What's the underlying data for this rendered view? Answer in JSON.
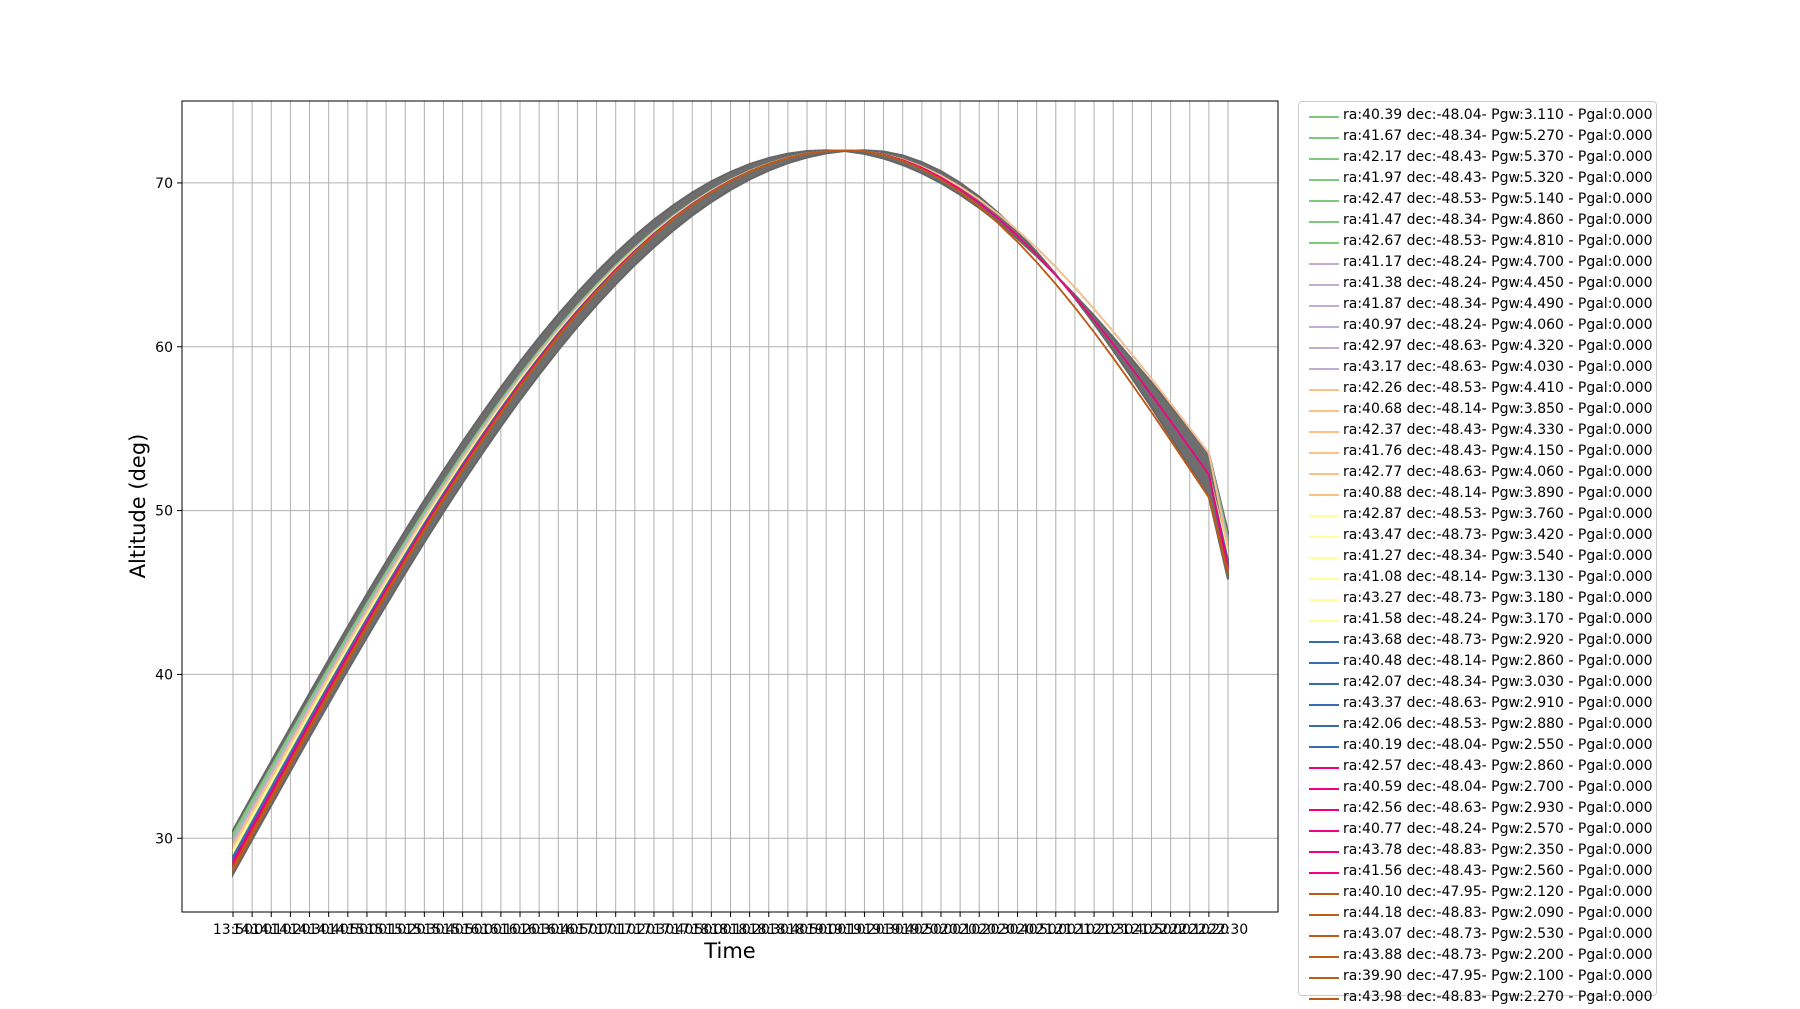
{
  "chart_data": {
    "type": "line",
    "xlabel": "Time",
    "ylabel": "Altitude (deg)",
    "ylim": [
      25.5,
      75
    ],
    "yticks": [
      30,
      40,
      50,
      60,
      70
    ],
    "grid": true,
    "legend_placement": "outside-right",
    "x": [
      "13:50",
      "14:00",
      "14:10",
      "14:20",
      "14:30",
      "14:40",
      "14:50",
      "15:00",
      "15:10",
      "15:20",
      "15:30",
      "15:40",
      "15:50",
      "16:00",
      "16:10",
      "16:20",
      "16:30",
      "16:40",
      "16:50",
      "17:00",
      "17:10",
      "17:20",
      "17:30",
      "17:40",
      "17:50",
      "18:00",
      "18:10",
      "18:20",
      "18:30",
      "18:40",
      "18:50",
      "19:00",
      "19:10",
      "19:20",
      "19:30",
      "19:40",
      "19:50",
      "20:00",
      "20:10",
      "20:20",
      "20:30",
      "20:40",
      "20:50",
      "21:00",
      "21:10",
      "21:20",
      "21:30",
      "21:40",
      "21:50",
      "22:00",
      "22:10",
      "22:20",
      "22:30"
    ],
    "altitude_profile": {
      "base_start": 29.0,
      "upper_start": 30.5,
      "lower_start": 27.8,
      "peak_time": "19:10",
      "peak_altitude": 72.0,
      "end_upper": 48.7,
      "end_lower": 45.8
    },
    "series": [
      {
        "name": "ra:40.39 dec:-48.04- Pgw:3.110 - Pgal:0.000",
        "color": "#7fc97f"
      },
      {
        "name": "ra:41.67 dec:-48.34- Pgw:5.270 - Pgal:0.000",
        "color": "#7fc97f"
      },
      {
        "name": "ra:42.17 dec:-48.43- Pgw:5.370 - Pgal:0.000",
        "color": "#7fc97f"
      },
      {
        "name": "ra:41.97 dec:-48.43- Pgw:5.320 - Pgal:0.000",
        "color": "#7fc97f"
      },
      {
        "name": "ra:42.47 dec:-48.53- Pgw:5.140 - Pgal:0.000",
        "color": "#7fc97f"
      },
      {
        "name": "ra:41.47 dec:-48.34- Pgw:4.860 - Pgal:0.000",
        "color": "#7fc97f"
      },
      {
        "name": "ra:42.67 dec:-48.53- Pgw:4.810 - Pgal:0.000",
        "color": "#7fc97f"
      },
      {
        "name": "ra:41.17 dec:-48.24- Pgw:4.700 - Pgal:0.000",
        "color": "#beaed4"
      },
      {
        "name": "ra:41.38 dec:-48.24- Pgw:4.450 - Pgal:0.000",
        "color": "#beaed4"
      },
      {
        "name": "ra:41.87 dec:-48.34- Pgw:4.490 - Pgal:0.000",
        "color": "#beaed4"
      },
      {
        "name": "ra:40.97 dec:-48.24- Pgw:4.060 - Pgal:0.000",
        "color": "#beaed4"
      },
      {
        "name": "ra:42.97 dec:-48.63- Pgw:4.320 - Pgal:0.000",
        "color": "#beaed4"
      },
      {
        "name": "ra:43.17 dec:-48.63- Pgw:4.030 - Pgal:0.000",
        "color": "#beaed4"
      },
      {
        "name": "ra:42.26 dec:-48.53- Pgw:4.410 - Pgal:0.000",
        "color": "#fdc086"
      },
      {
        "name": "ra:40.68 dec:-48.14- Pgw:3.850 - Pgal:0.000",
        "color": "#fdc086"
      },
      {
        "name": "ra:42.37 dec:-48.43- Pgw:4.330 - Pgal:0.000",
        "color": "#fdc086"
      },
      {
        "name": "ra:41.76 dec:-48.43- Pgw:4.150 - Pgal:0.000",
        "color": "#fdc086"
      },
      {
        "name": "ra:42.77 dec:-48.63- Pgw:4.060 - Pgal:0.000",
        "color": "#fdc086"
      },
      {
        "name": "ra:40.88 dec:-48.14- Pgw:3.890 - Pgal:0.000",
        "color": "#fdc086"
      },
      {
        "name": "ra:42.87 dec:-48.53- Pgw:3.760 - Pgal:0.000",
        "color": "#ffff99"
      },
      {
        "name": "ra:43.47 dec:-48.73- Pgw:3.420 - Pgal:0.000",
        "color": "#ffff99"
      },
      {
        "name": "ra:41.27 dec:-48.34- Pgw:3.540 - Pgal:0.000",
        "color": "#ffff99"
      },
      {
        "name": "ra:41.08 dec:-48.14- Pgw:3.130 - Pgal:0.000",
        "color": "#ffff99"
      },
      {
        "name": "ra:43.27 dec:-48.73- Pgw:3.180 - Pgal:0.000",
        "color": "#ffff99"
      },
      {
        "name": "ra:41.58 dec:-48.24- Pgw:3.170 - Pgal:0.000",
        "color": "#ffff99"
      },
      {
        "name": "ra:43.68 dec:-48.73- Pgw:2.920 - Pgal:0.000",
        "color": "#386cb0"
      },
      {
        "name": "ra:40.48 dec:-48.14- Pgw:2.860 - Pgal:0.000",
        "color": "#386cb0"
      },
      {
        "name": "ra:42.07 dec:-48.34- Pgw:3.030 - Pgal:0.000",
        "color": "#386cb0"
      },
      {
        "name": "ra:43.37 dec:-48.63- Pgw:2.910 - Pgal:0.000",
        "color": "#386cb0"
      },
      {
        "name": "ra:42.06 dec:-48.53- Pgw:2.880 - Pgal:0.000",
        "color": "#386cb0"
      },
      {
        "name": "ra:40.19 dec:-48.04- Pgw:2.550 - Pgal:0.000",
        "color": "#386cb0"
      },
      {
        "name": "ra:42.57 dec:-48.43- Pgw:2.860 - Pgal:0.000",
        "color": "#f0027f"
      },
      {
        "name": "ra:40.59 dec:-48.04- Pgw:2.700 - Pgal:0.000",
        "color": "#f0027f"
      },
      {
        "name": "ra:42.56 dec:-48.63- Pgw:2.930 - Pgal:0.000",
        "color": "#f0027f"
      },
      {
        "name": "ra:40.77 dec:-48.24- Pgw:2.570 - Pgal:0.000",
        "color": "#f0027f"
      },
      {
        "name": "ra:43.78 dec:-48.83- Pgw:2.350 - Pgal:0.000",
        "color": "#f0027f"
      },
      {
        "name": "ra:41.56 dec:-48.43- Pgw:2.560 - Pgal:0.000",
        "color": "#f0027f"
      },
      {
        "name": "ra:40.10 dec:-47.95- Pgw:2.120 - Pgal:0.000",
        "color": "#bf5b17"
      },
      {
        "name": "ra:44.18 dec:-48.83- Pgw:2.090 - Pgal:0.000",
        "color": "#bf5b17"
      },
      {
        "name": "ra:43.07 dec:-48.73- Pgw:2.530 - Pgal:0.000",
        "color": "#bf5b17"
      },
      {
        "name": "ra:43.88 dec:-48.73- Pgw:2.200 - Pgal:0.000",
        "color": "#bf5b17"
      },
      {
        "name": "ra:39.90 dec:-47.95- Pgw:2.100 - Pgal:0.000",
        "color": "#bf5b17"
      },
      {
        "name": "ra:43.98 dec:-48.83- Pgw:2.270 - Pgal:0.000",
        "color": "#bf5b17"
      }
    ]
  }
}
